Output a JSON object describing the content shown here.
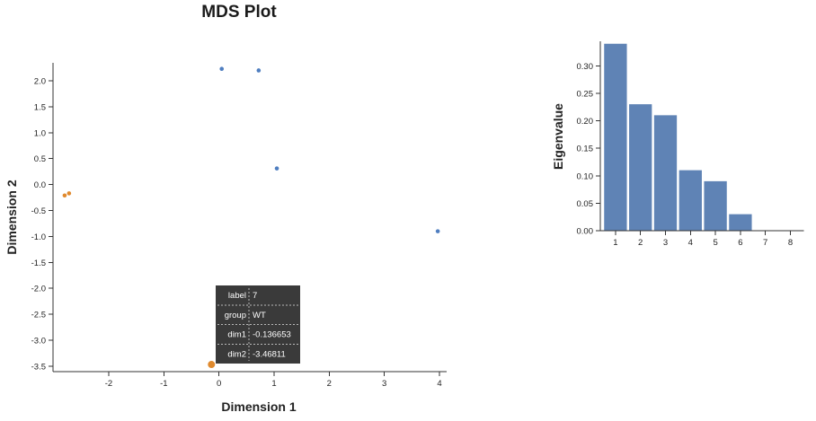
{
  "title": "MDS Plot",
  "chart_data": [
    {
      "type": "scatter",
      "xlabel": "Dimension 1",
      "ylabel": "Dimension 2",
      "xlim": [
        -2.9,
        4.05
      ],
      "ylim": [
        -3.6,
        2.3
      ],
      "x_ticks": [
        -2,
        -1,
        0,
        1,
        2,
        3,
        4
      ],
      "y_ticks": [
        2.0,
        1.5,
        1.0,
        0.5,
        0.0,
        -0.5,
        -1.0,
        -1.5,
        -2.0,
        -2.5,
        -3.0,
        -3.5
      ],
      "points": [
        {
          "x": -2.8,
          "y": -0.21,
          "group": "WT",
          "color": "#e08a2e"
        },
        {
          "x": -2.72,
          "y": -0.17,
          "group": "WT",
          "color": "#e08a2e"
        },
        {
          "x": -0.136653,
          "y": -3.46811,
          "group": "WT",
          "color": "#e08a2e",
          "highlighted": true
        },
        {
          "x": 0.05,
          "y": 2.23,
          "color": "#4f7ec0"
        },
        {
          "x": 0.72,
          "y": 2.2,
          "color": "#4f7ec0"
        },
        {
          "x": 1.05,
          "y": 0.31,
          "color": "#4f7ec0"
        },
        {
          "x": 3.97,
          "y": -0.9,
          "color": "#4f7ec0"
        }
      ],
      "tooltip": [
        {
          "key": "label",
          "value": "7"
        },
        {
          "key": "group",
          "value": "WT"
        },
        {
          "key": "dim1",
          "value": "-0.136653"
        },
        {
          "key": "dim2",
          "value": "-3.46811"
        }
      ]
    },
    {
      "type": "bar",
      "xlabel": "",
      "ylabel": "Eigenvalue",
      "categories": [
        "1",
        "2",
        "3",
        "4",
        "5",
        "6",
        "7",
        "8"
      ],
      "values": [
        0.34,
        0.23,
        0.21,
        0.11,
        0.09,
        0.03,
        0,
        0
      ],
      "ylim": [
        0,
        0.34
      ],
      "y_ticks": [
        0.0,
        0.05,
        0.1,
        0.15,
        0.2,
        0.25,
        0.3
      ],
      "bar_color": "#5f83b5"
    }
  ]
}
